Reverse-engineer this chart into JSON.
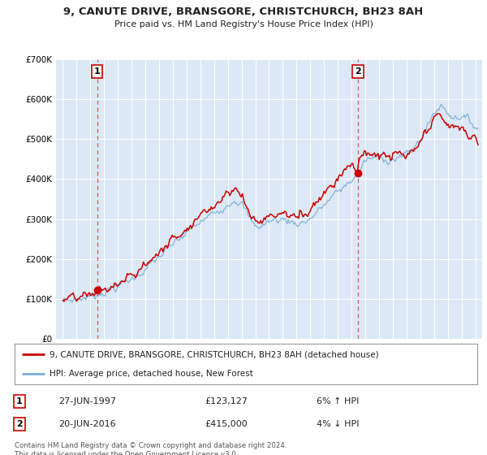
{
  "title_line1": "9, CANUTE DRIVE, BRANSGORE, CHRISTCHURCH, BH23 8AH",
  "title_line2": "Price paid vs. HM Land Registry's House Price Index (HPI)",
  "legend_line1": "9, CANUTE DRIVE, BRANSGORE, CHRISTCHURCH, BH23 8AH (detached house)",
  "legend_line2": "HPI: Average price, detached house, New Forest",
  "footnote": "Contains HM Land Registry data © Crown copyright and database right 2024.\nThis data is licensed under the Open Government Licence v3.0.",
  "transaction1_label": "1",
  "transaction1_date": "27-JUN-1997",
  "transaction1_price": "£123,127",
  "transaction1_hpi": "6% ↑ HPI",
  "transaction2_label": "2",
  "transaction2_date": "20-JUN-2016",
  "transaction2_price": "£415,000",
  "transaction2_hpi": "4% ↓ HPI",
  "sale1_year": 1997.49,
  "sale1_price": 123127,
  "sale2_year": 2016.47,
  "sale2_price": 415000,
  "hpi_color": "#7aaed6",
  "price_color": "#cc0000",
  "bg_color": "#dce8f5",
  "plot_bg_color": "#dce8f5",
  "ylim": [
    0,
    700000
  ],
  "xlim_start": 1994.5,
  "xlim_end": 2025.5,
  "yticks": [
    0,
    100000,
    200000,
    300000,
    400000,
    500000,
    600000,
    700000
  ],
  "ytick_labels": [
    "£0",
    "£100K",
    "£200K",
    "£300K",
    "£400K",
    "£500K",
    "£600K",
    "£700K"
  ],
  "xticks": [
    1995,
    1996,
    1997,
    1998,
    1999,
    2000,
    2001,
    2002,
    2003,
    2004,
    2005,
    2006,
    2007,
    2008,
    2009,
    2010,
    2011,
    2012,
    2013,
    2014,
    2015,
    2016,
    2017,
    2018,
    2019,
    2020,
    2021,
    2022,
    2023,
    2024,
    2025
  ]
}
